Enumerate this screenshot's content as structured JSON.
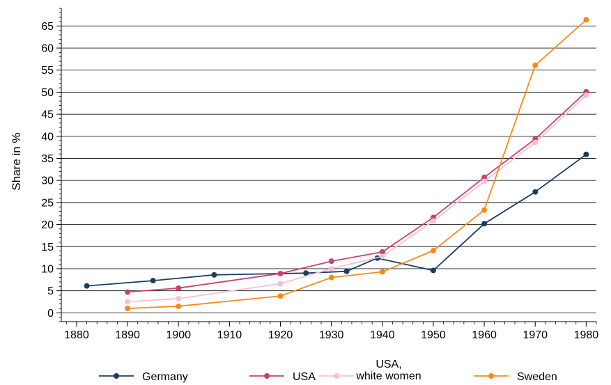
{
  "chart_data": {
    "type": "line",
    "title": "",
    "xlabel": "",
    "ylabel": "Share in %",
    "xlim": [
      1877,
      1982
    ],
    "ylim": [
      -2,
      69
    ],
    "x_ticks": [
      1880,
      1890,
      1900,
      1910,
      1920,
      1930,
      1940,
      1950,
      1960,
      1970,
      1980
    ],
    "y_ticks": [
      0,
      5,
      10,
      15,
      20,
      25,
      30,
      35,
      40,
      45,
      50,
      55,
      60,
      65
    ],
    "grid": true,
    "legend_position": "bottom",
    "series": [
      {
        "name": "Germany",
        "color": "#1a3d5e",
        "x": [
          1882,
          1895,
          1907,
          1925,
          1933,
          1939,
          1950,
          1960,
          1970,
          1980
        ],
        "y": [
          6.1,
          7.3,
          8.6,
          9.0,
          9.4,
          12.4,
          9.6,
          20.2,
          27.4,
          35.9
        ]
      },
      {
        "name": "USA",
        "color": "#c9426a",
        "x": [
          1890,
          1900,
          1920,
          1930,
          1940,
          1950,
          1960,
          1970,
          1980
        ],
        "y": [
          4.7,
          5.6,
          8.9,
          11.7,
          13.8,
          21.6,
          30.7,
          39.4,
          50.1
        ]
      },
      {
        "name": "USA,\nwhite women",
        "color": "#f2c2d2",
        "x": [
          1890,
          1900,
          1920,
          1930,
          1940,
          1950,
          1960,
          1970,
          1980
        ],
        "y": [
          2.5,
          3.2,
          6.6,
          10.0,
          12.8,
          20.8,
          29.8,
          38.6,
          49.3
        ]
      },
      {
        "name": "Sweden",
        "color": "#f58a1a",
        "x": [
          1890,
          1900,
          1920,
          1930,
          1940,
          1950,
          1960,
          1970,
          1980
        ],
        "y": [
          1.0,
          1.5,
          3.8,
          8.0,
          9.3,
          14.1,
          23.3,
          56.1,
          66.4
        ]
      }
    ]
  }
}
